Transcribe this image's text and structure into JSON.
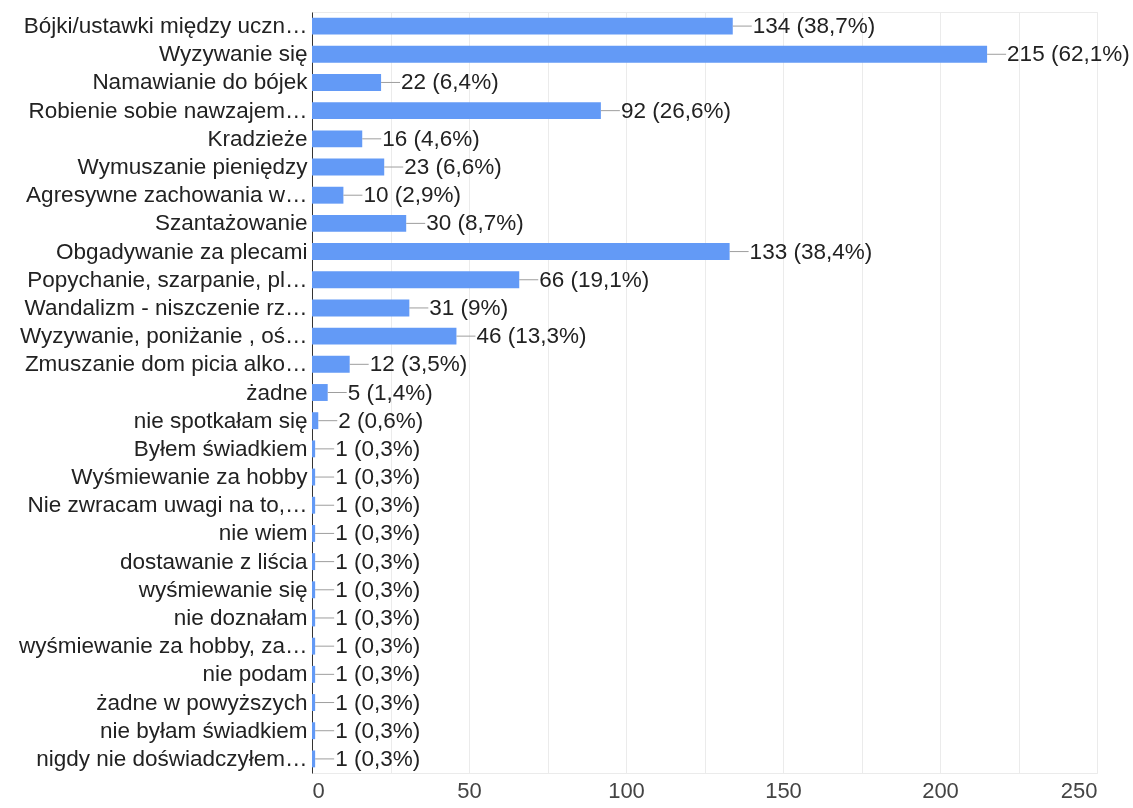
{
  "chart_data": {
    "type": "bar",
    "orientation": "horizontal",
    "categories": [
      "Bójki/ustawki między uczn…",
      "Wyzywanie się",
      "Namawianie do bójek",
      "Robienie sobie nawzajem…",
      "Kradzieże",
      "Wymuszanie pieniędzy",
      "Agresywne zachowania w…",
      "Szantażowanie",
      "Obgadywanie za plecami",
      "Popychanie, szarpanie, pl…",
      "Wandalizm - niszczenie rz…",
      "Wyzywanie, poniżanie , oś…",
      "Zmuszanie dom picia alko…",
      "żadne",
      "nie spotkałam się",
      "Byłem świadkiem",
      "Wyśmiewanie za hobby",
      "Nie zwracam uwagi na to,…",
      "nie wiem",
      "dostawanie z liścia",
      "wyśmiewanie się",
      "nie doznałam",
      "wyśmiewanie za hobby, za…",
      "nie podam",
      "żadne w powyższych",
      "nie byłam świadkiem",
      "nigdy nie doświadczyłem…"
    ],
    "values": [
      134,
      215,
      22,
      92,
      16,
      23,
      10,
      30,
      133,
      66,
      31,
      46,
      12,
      5,
      2,
      1,
      1,
      1,
      1,
      1,
      1,
      1,
      1,
      1,
      1,
      1,
      1
    ],
    "value_labels": [
      "134 (38,7%)",
      "215 (62,1%)",
      "22 (6,4%)",
      "92 (26,6%)",
      "16 (4,6%)",
      "23 (6,6%)",
      "10 (2,9%)",
      "30 (8,7%)",
      "133 (38,4%)",
      "66 (19,1%)",
      "31 (9%)",
      "46 (13,3%)",
      "12 (3,5%)",
      "5 (1,4%)",
      "2 (0,6%)",
      "1 (0,3%)",
      "1 (0,3%)",
      "1 (0,3%)",
      "1 (0,3%)",
      "1 (0,3%)",
      "1 (0,3%)",
      "1 (0,3%)",
      "1 (0,3%)",
      "1 (0,3%)",
      "1 (0,3%)",
      "1 (0,3%)",
      "1 (0,3%)"
    ],
    "color": "#639af6",
    "xlim": [
      0,
      250
    ],
    "xticks": [
      0,
      {
        "value": 25,
        "label": null
      },
      50,
      {
        "value": 75,
        "label": null
      },
      100,
      {
        "value": 125,
        "label": null
      },
      150,
      {
        "value": 175,
        "label": null
      },
      200,
      {
        "value": 225,
        "label": null
      },
      250
    ],
    "grid": "x"
  }
}
